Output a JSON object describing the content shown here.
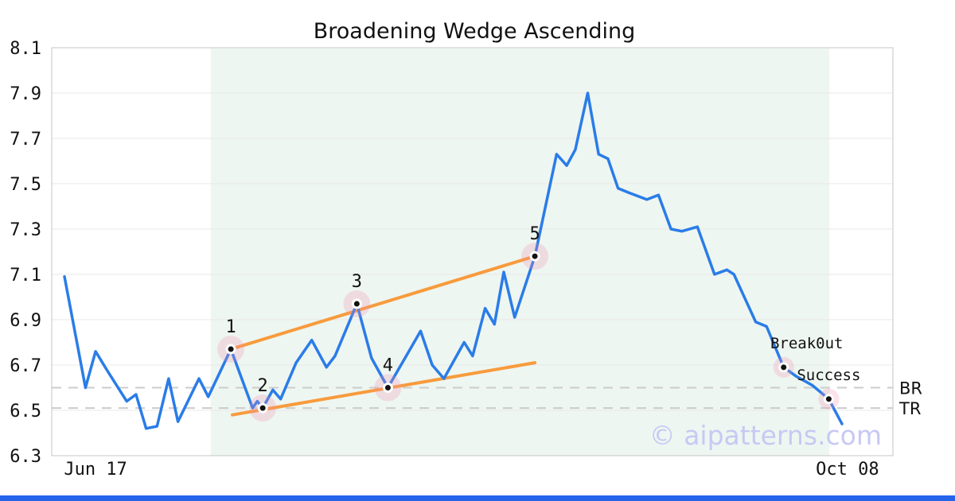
{
  "title": "Broadening Wedge Ascending",
  "watermark": "© aipatterns.com",
  "colors": {
    "series_line": "#2a7ce8",
    "trendline": "#f89b3d",
    "pattern_region": "#eef6f1",
    "point_halo": "rgba(240,140,175,0.25)",
    "point_dot": "#111111",
    "point_ring": "#ffffff",
    "grid": "#e8e8e8",
    "plot_border": "#c4c4c4",
    "dashed_level": "#cccccc",
    "watermark": "#c7c9f3",
    "bottom_bar": "#2563eb",
    "text": "#111111"
  },
  "chart_data": {
    "type": "line",
    "title": "Broadening Wedge Ascending",
    "x_axis": {
      "tick_labels": [
        "Jun 17",
        "Oct 08"
      ],
      "tick_t": [
        0.04,
        1.007
      ],
      "domain_note": "t is normalized 0-1 position between first (Jun 17) and last (Oct 08) data point"
    },
    "y_axis": {
      "min": 6.3,
      "max": 8.1,
      "tick_step": 0.2,
      "ticks": [
        8.1,
        7.9,
        7.7,
        7.5,
        7.3,
        7.1,
        6.9,
        6.7,
        6.5,
        6.3
      ]
    },
    "grid": true,
    "series": [
      {
        "name": "price",
        "points": [
          [
            0.0,
            7.09
          ],
          [
            0.027,
            6.6
          ],
          [
            0.04,
            6.76
          ],
          [
            0.056,
            6.67
          ],
          [
            0.08,
            6.54
          ],
          [
            0.092,
            6.57
          ],
          [
            0.105,
            6.42
          ],
          [
            0.119,
            6.43
          ],
          [
            0.134,
            6.64
          ],
          [
            0.146,
            6.45
          ],
          [
            0.173,
            6.64
          ],
          [
            0.185,
            6.56
          ],
          [
            0.214,
            6.77
          ],
          [
            0.242,
            6.51
          ],
          [
            0.248,
            6.54
          ],
          [
            0.255,
            6.51
          ],
          [
            0.268,
            6.59
          ],
          [
            0.278,
            6.55
          ],
          [
            0.298,
            6.71
          ],
          [
            0.318,
            6.81
          ],
          [
            0.337,
            6.69
          ],
          [
            0.348,
            6.74
          ],
          [
            0.376,
            6.97
          ],
          [
            0.395,
            6.73
          ],
          [
            0.416,
            6.6
          ],
          [
            0.458,
            6.85
          ],
          [
            0.473,
            6.7
          ],
          [
            0.488,
            6.64
          ],
          [
            0.514,
            6.8
          ],
          [
            0.525,
            6.74
          ],
          [
            0.541,
            6.95
          ],
          [
            0.553,
            6.88
          ],
          [
            0.565,
            7.11
          ],
          [
            0.579,
            6.91
          ],
          [
            0.605,
            7.18
          ],
          [
            0.633,
            7.63
          ],
          [
            0.646,
            7.58
          ],
          [
            0.657,
            7.65
          ],
          [
            0.673,
            7.9
          ],
          [
            0.687,
            7.63
          ],
          [
            0.699,
            7.61
          ],
          [
            0.712,
            7.48
          ],
          [
            0.726,
            7.46
          ],
          [
            0.749,
            7.43
          ],
          [
            0.764,
            7.45
          ],
          [
            0.78,
            7.3
          ],
          [
            0.794,
            7.29
          ],
          [
            0.814,
            7.31
          ],
          [
            0.836,
            7.1
          ],
          [
            0.852,
            7.12
          ],
          [
            0.861,
            7.1
          ],
          [
            0.889,
            6.89
          ],
          [
            0.903,
            6.87
          ],
          [
            0.925,
            6.69
          ],
          [
            0.941,
            6.65
          ],
          [
            0.962,
            6.61
          ],
          [
            0.983,
            6.55
          ],
          [
            1.0,
            6.44
          ]
        ]
      }
    ],
    "pattern_region": {
      "t0": 0.188,
      "t1": 0.984
    },
    "trendlines": [
      {
        "name": "upper",
        "from": [
          0.214,
          6.77
        ],
        "to": [
          0.605,
          7.18
        ]
      },
      {
        "name": "lower",
        "from": [
          0.216,
          6.48
        ],
        "to": [
          0.605,
          6.71
        ]
      }
    ],
    "pattern_points": [
      {
        "label": "1",
        "t": 0.214,
        "price": 6.77
      },
      {
        "label": "2",
        "t": 0.255,
        "price": 6.51
      },
      {
        "label": "3",
        "t": 0.376,
        "price": 6.97
      },
      {
        "label": "4",
        "t": 0.416,
        "price": 6.6
      },
      {
        "label": "5",
        "t": 0.605,
        "price": 7.18
      }
    ],
    "event_points": [
      {
        "label": "Break0ut",
        "t": 0.925,
        "price": 6.69,
        "label_dx": 29
      },
      {
        "label": "Success",
        "t": 0.983,
        "price": 6.55,
        "label_dx": 0
      }
    ],
    "levels": [
      {
        "label": "BR",
        "price": 6.6
      },
      {
        "label": "TR",
        "price": 6.51
      }
    ],
    "legend": false
  }
}
